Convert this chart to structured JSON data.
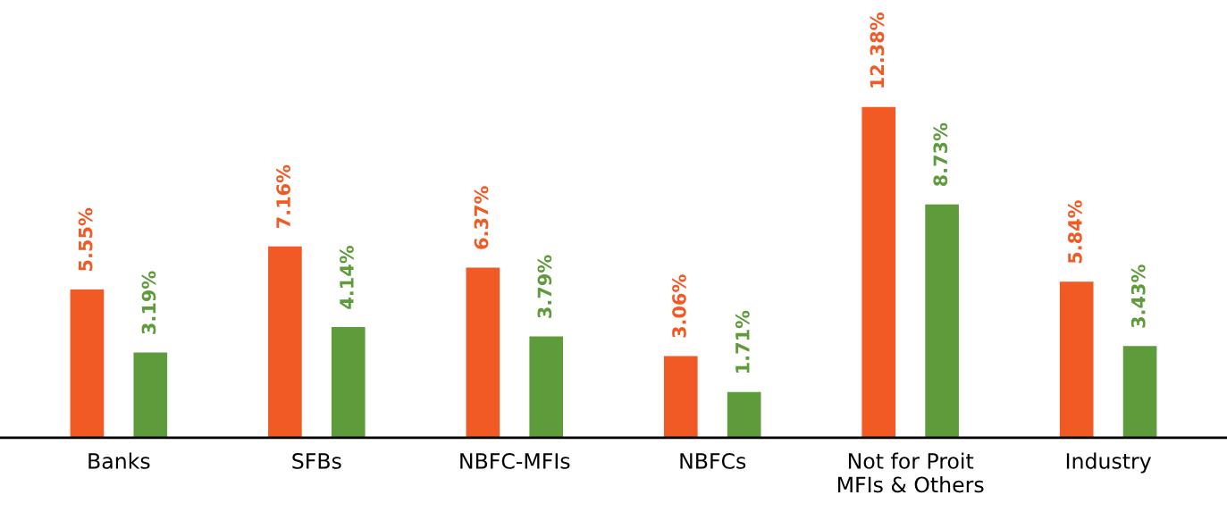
{
  "chart_data": {
    "type": "bar",
    "categories": [
      "Banks",
      "SFBs",
      "NBFC-MFIs",
      "NBFCs",
      "Not for Proit\nMFIs & Others",
      "Industry"
    ],
    "series": [
      {
        "color": "#f15a24",
        "values": [
          5.55,
          7.16,
          6.37,
          3.06,
          12.38,
          5.84
        ],
        "value_labels": [
          "5.55%",
          "7.16%",
          "6.37%",
          "3.06%",
          "12.38%",
          "5.84%"
        ]
      },
      {
        "color": "#5e9b3a",
        "values": [
          3.19,
          4.14,
          3.79,
          1.71,
          8.73,
          3.43
        ],
        "value_labels": [
          "3.19%",
          "4.14%",
          "3.79%",
          "1.71%",
          "8.73%",
          "3.43%"
        ]
      }
    ],
    "tick_labels": "x",
    "grid": false,
    "legend": false
  }
}
